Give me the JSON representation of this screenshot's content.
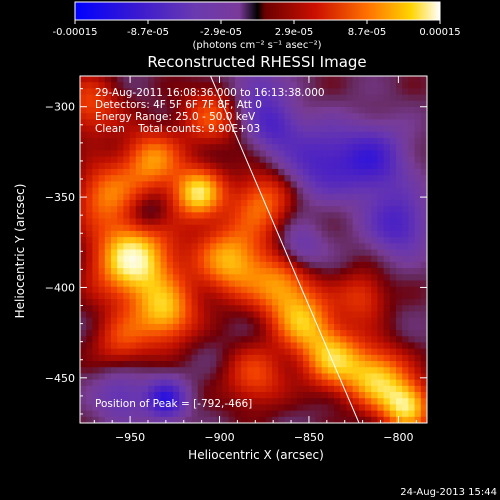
{
  "colorbar": {
    "tick_labels": [
      "-0.00015",
      "-8.7e-05",
      "-2.9e-05",
      "2.9e-05",
      "8.7e-05",
      "0.00015"
    ],
    "unit_label": "(photons cm⁻² s⁻¹ asec⁻²)",
    "range": [
      -0.00015,
      0.00015
    ]
  },
  "chart_data": {
    "type": "heatmap",
    "title": "Reconstructed RHESSI Image",
    "xlabel": "Heliocentric X (arcsec)",
    "ylabel": "Heliocentric Y (arcsec)",
    "xlim": [
      -978,
      -784
    ],
    "ylim": [
      -475,
      -283
    ],
    "x_ticks": [
      -950,
      -900,
      -850,
      -800
    ],
    "y_ticks": [
      -300,
      -350,
      -400,
      -450
    ],
    "x_tick_labels": [
      "−950",
      "−900",
      "−850",
      "−800"
    ],
    "y_tick_labels": [
      "−300",
      "−350",
      "−400",
      "−450"
    ],
    "info_lines": [
      "29-Aug-2011 16:08:36.000 to 16:13:38.000",
      "Detectors: 4F 5F 6F 7F 8F, Att 0",
      "Energy Range: 25.0 - 50.0 keV",
      "Clean    Total counts: 9.90E+03"
    ],
    "peak_label": "Position of Peak = [-792,-466]",
    "peak_position": [
      -792,
      -466
    ],
    "limb_line": [
      [
        -905,
        -283
      ],
      [
        -822,
        -475
      ]
    ],
    "emission_sources": [
      {
        "x": -948,
        "y": -385,
        "amp": 1.0,
        "s": 16
      },
      {
        "x": -912,
        "y": -348,
        "amp": 0.85,
        "s": 10
      },
      {
        "x": -938,
        "y": -330,
        "amp": 0.65,
        "s": 12
      },
      {
        "x": -964,
        "y": -348,
        "amp": 0.55,
        "s": 12
      },
      {
        "x": -930,
        "y": -415,
        "amp": 0.7,
        "s": 12
      },
      {
        "x": -893,
        "y": -385,
        "amp": 0.75,
        "s": 14
      },
      {
        "x": -876,
        "y": -352,
        "amp": 0.55,
        "s": 12
      },
      {
        "x": -865,
        "y": -400,
        "amp": 0.6,
        "s": 12
      },
      {
        "x": -852,
        "y": -420,
        "amp": 0.65,
        "s": 12
      },
      {
        "x": -836,
        "y": -440,
        "amp": 0.7,
        "s": 12
      },
      {
        "x": -812,
        "y": -450,
        "amp": 0.75,
        "s": 12
      },
      {
        "x": -795,
        "y": -466,
        "amp": 0.85,
        "s": 10
      },
      {
        "x": -955,
        "y": -430,
        "amp": 0.4,
        "s": 11
      },
      {
        "x": -972,
        "y": -300,
        "amp": 0.45,
        "s": 12
      },
      {
        "x": -905,
        "y": -305,
        "amp": 0.45,
        "s": 12
      },
      {
        "x": -880,
        "y": -450,
        "amp": 0.45,
        "s": 12
      },
      {
        "x": -820,
        "y": -405,
        "amp": 0.4,
        "s": 10
      },
      {
        "x": -845,
        "y": -330,
        "amp": -0.5,
        "s": 14
      },
      {
        "x": -815,
        "y": -330,
        "amp": -0.6,
        "s": 14
      },
      {
        "x": -800,
        "y": -365,
        "amp": -0.55,
        "s": 12
      },
      {
        "x": -955,
        "y": -460,
        "amp": -0.4,
        "s": 10
      },
      {
        "x": -930,
        "y": -462,
        "amp": -0.7,
        "s": 8
      },
      {
        "x": -880,
        "y": -290,
        "amp": -0.35,
        "s": 10
      },
      {
        "x": -870,
        "y": -310,
        "amp": -0.5,
        "s": 10
      },
      {
        "x": -940,
        "y": -360,
        "amp": -0.25,
        "s": 8
      },
      {
        "x": -855,
        "y": -378,
        "amp": -0.35,
        "s": 9
      }
    ]
  },
  "footer": {
    "date_stamp": "24-Aug-2013 15:44"
  }
}
